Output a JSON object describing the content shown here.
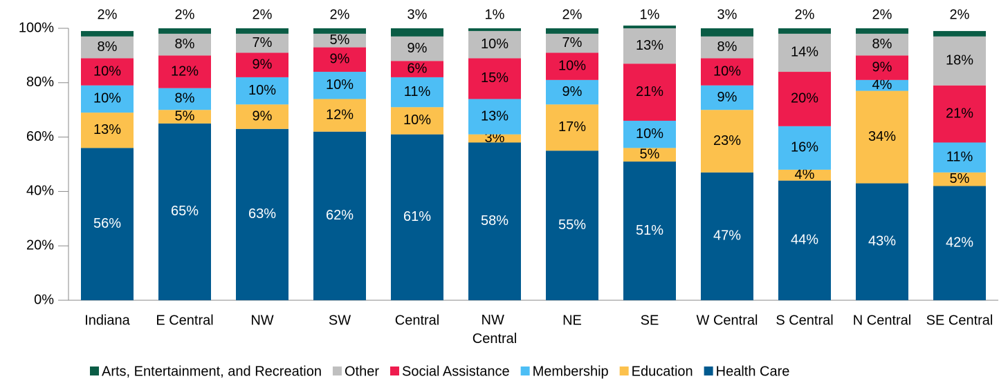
{
  "chart_data": {
    "type": "stacked_bar",
    "categories": [
      "Indiana",
      "E Central",
      "NW",
      "SW",
      "Central",
      "NW Central",
      "NE",
      "SE",
      "W Central",
      "S Central",
      "N Central",
      "SE Central"
    ],
    "series": [
      {
        "name": "Health Care",
        "color": "#005a8f",
        "values": [
          56,
          65,
          63,
          62,
          61,
          58,
          55,
          51,
          47,
          44,
          43,
          42
        ],
        "value_labels": [
          "56%",
          "65%",
          "63%",
          "62%",
          "61%",
          "58%",
          "55%",
          "51%",
          "47%",
          "44%",
          "43%",
          "42%"
        ]
      },
      {
        "name": "Education",
        "color": "#fcc14d",
        "values": [
          13,
          5,
          9,
          12,
          10,
          3,
          17,
          5,
          23,
          4,
          34,
          5
        ],
        "value_labels": [
          "13%",
          "5%",
          "9%",
          "12%",
          "10%",
          "3%",
          "17%",
          "5%",
          "23%",
          "4%",
          "34%",
          "5%"
        ]
      },
      {
        "name": "Membership",
        "color": "#4dbef5",
        "values": [
          10,
          8,
          10,
          10,
          11,
          13,
          9,
          10,
          9,
          16,
          4,
          11
        ],
        "value_labels": [
          "10%",
          "8%",
          "10%",
          "10%",
          "11%",
          "13%",
          "9%",
          "10%",
          "9%",
          "16%",
          "4%",
          "11%"
        ]
      },
      {
        "name": "Social Assistance",
        "color": "#ee1c4e",
        "values": [
          10,
          12,
          9,
          9,
          6,
          15,
          10,
          21,
          10,
          20,
          9,
          21
        ],
        "value_labels": [
          "10%",
          "12%",
          "9%",
          "9%",
          "6%",
          "15%",
          "10%",
          "21%",
          "10%",
          "20%",
          "9%",
          "21%"
        ]
      },
      {
        "name": "Other",
        "color": "#bfbfbf",
        "values": [
          8,
          8,
          7,
          5,
          9,
          10,
          7,
          13,
          8,
          14,
          8,
          18
        ],
        "value_labels": [
          "8%",
          "8%",
          "7%",
          "5%",
          "9%",
          "10%",
          "7%",
          "13%",
          "8%",
          "14%",
          "8%",
          "18%"
        ]
      },
      {
        "name": "Arts, Entertainment, and Recreation",
        "color": "#0a5c45",
        "values": [
          2,
          2,
          2,
          2,
          3,
          1,
          2,
          1,
          3,
          2,
          2,
          2
        ],
        "value_labels": [
          "2%",
          "2%",
          "2%",
          "2%",
          "3%",
          "1%",
          "2%",
          "1%",
          "3%",
          "2%",
          "2%",
          "2%"
        ]
      }
    ],
    "ylim": [
      0,
      100
    ],
    "yticks": [
      {
        "value": 0,
        "label": "0%"
      },
      {
        "value": 20,
        "label": "20%"
      },
      {
        "value": 40,
        "label": "40%"
      },
      {
        "value": 60,
        "label": "60%"
      },
      {
        "value": 80,
        "label": "80%"
      },
      {
        "value": 100,
        "label": "100%"
      }
    ],
    "legend_position": "bottom"
  }
}
